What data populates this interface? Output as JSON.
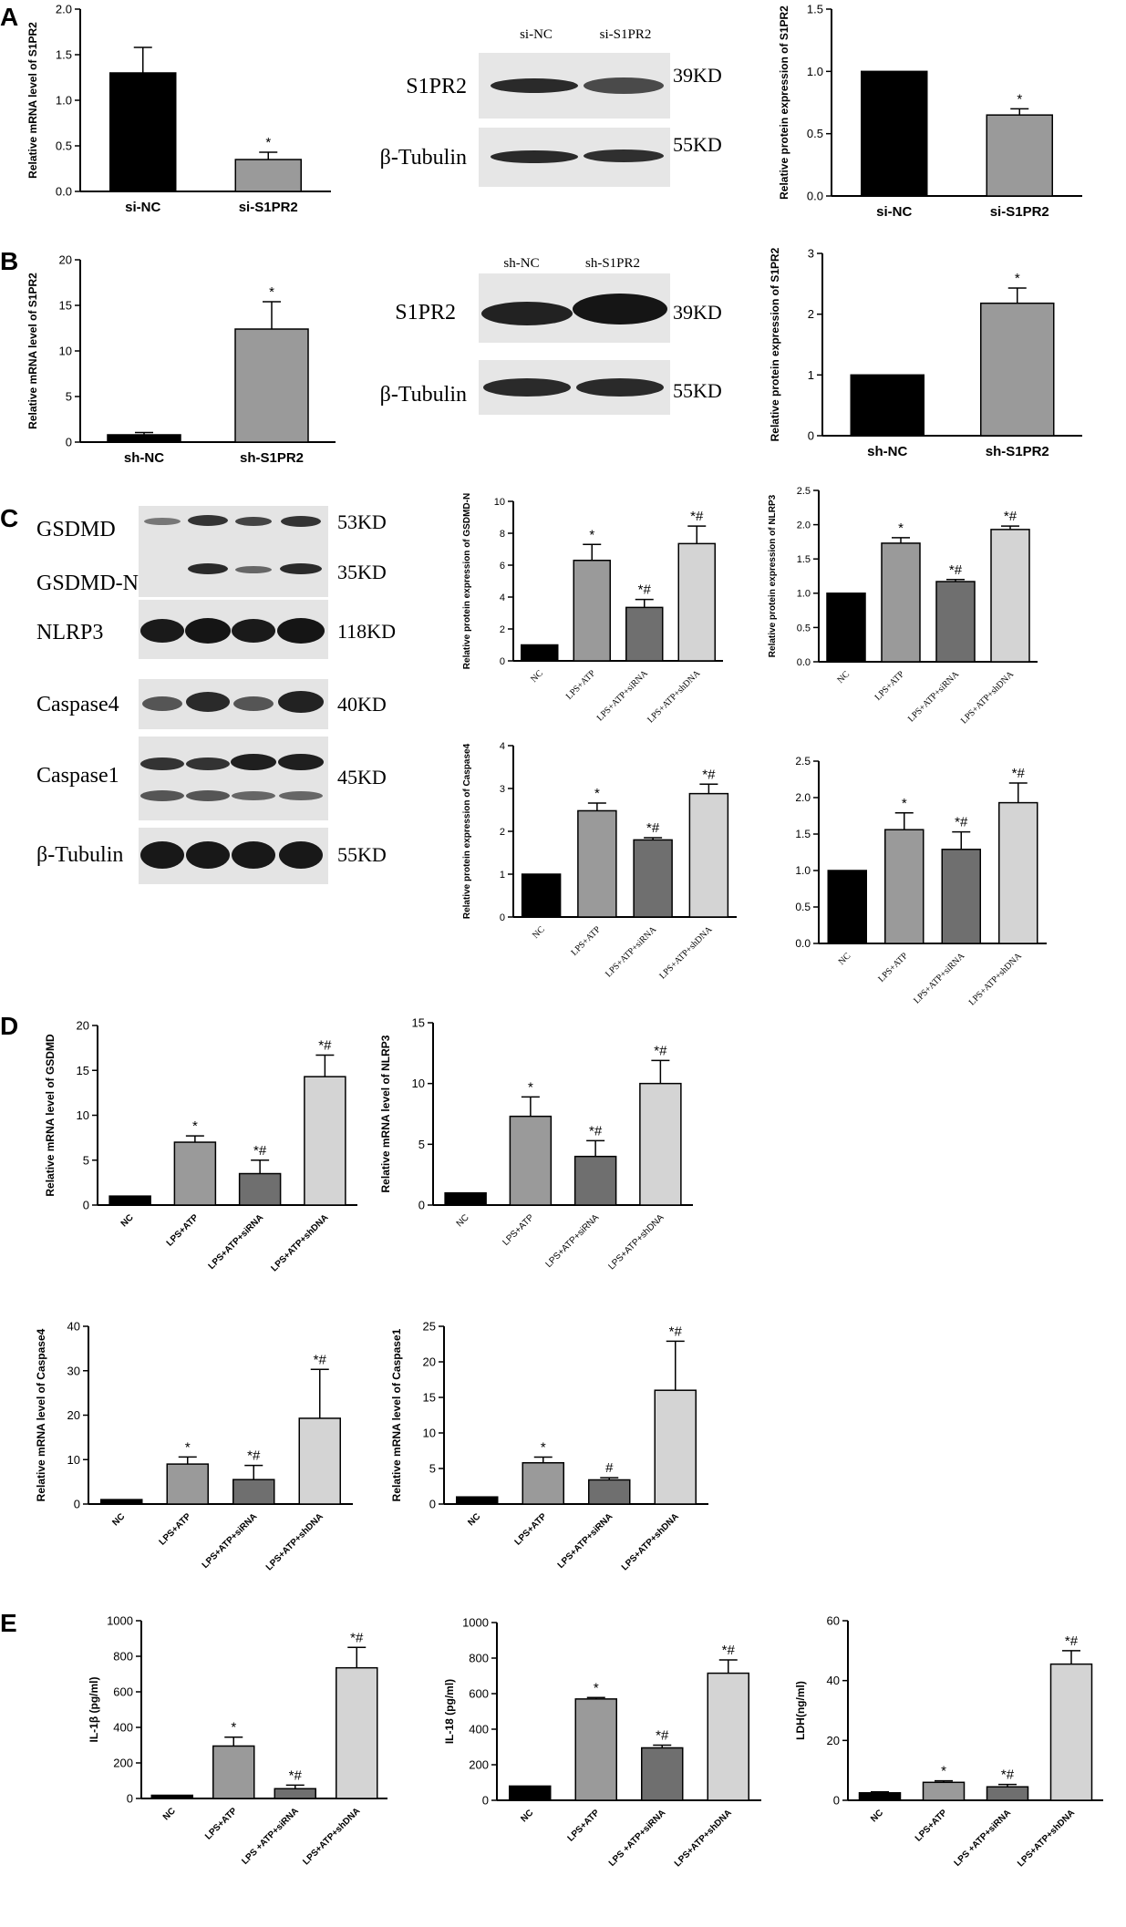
{
  "panels": {
    "A": "A",
    "B": "B",
    "C": "C",
    "D": "D",
    "E": "E"
  },
  "colors": {
    "black": "#000000",
    "gray": "#9a9a9a",
    "dark_gray": "#6f6f6f",
    "light_gray": "#d4d4d4"
  },
  "chart_data": [
    {
      "id": "A1",
      "type": "bar",
      "categories": [
        "si-NC",
        "si-S1PR2"
      ],
      "values": [
        1.3,
        0.35
      ],
      "errors": [
        0.28,
        0.08
      ],
      "marks": [
        "",
        "*"
      ],
      "colors": [
        "#000000",
        "#9a9a9a"
      ],
      "ylabel": "Relative mRNA level of S1PR2",
      "ylim": [
        0,
        2.0
      ],
      "ticks": [
        0,
        0.5,
        1.0,
        1.5,
        2.0
      ],
      "tick_labels": [
        "0.0",
        "0.5",
        "1.0",
        "1.5",
        "2.0"
      ],
      "xlabel_style": "bold"
    },
    {
      "id": "A2",
      "type": "bar",
      "categories": [
        "si-NC",
        "si-S1PR2"
      ],
      "values": [
        1.0,
        0.65
      ],
      "errors": [
        0.0,
        0.05
      ],
      "marks": [
        "",
        "*"
      ],
      "colors": [
        "#000000",
        "#9a9a9a"
      ],
      "ylabel": "Relative protein expression of S1PR2",
      "ylim": [
        0,
        1.5
      ],
      "ticks": [
        0,
        0.5,
        1.0,
        1.5
      ],
      "tick_labels": [
        "0.0",
        "0.5",
        "1.0",
        "1.5"
      ],
      "xlabel_style": "bold"
    },
    {
      "id": "B1",
      "type": "bar",
      "categories": [
        "sh-NC",
        "sh-S1PR2"
      ],
      "values": [
        0.8,
        12.4
      ],
      "errors": [
        0.25,
        3.0
      ],
      "marks": [
        "",
        "*"
      ],
      "colors": [
        "#000000",
        "#9a9a9a"
      ],
      "ylabel": "Relative mRNA level of S1PR2",
      "ylim": [
        0,
        20
      ],
      "ticks": [
        0,
        5,
        10,
        15,
        20
      ],
      "tick_labels": [
        "0",
        "5",
        "10",
        "15",
        "20"
      ],
      "xlabel_style": "bold"
    },
    {
      "id": "B2",
      "type": "bar",
      "categories": [
        "sh-NC",
        "sh-S1PR2"
      ],
      "values": [
        1.0,
        2.18
      ],
      "errors": [
        0.0,
        0.25
      ],
      "marks": [
        "",
        "*"
      ],
      "colors": [
        "#000000",
        "#9a9a9a"
      ],
      "ylabel": "Relative protein expression of S1PR2",
      "ylim": [
        0,
        3
      ],
      "ticks": [
        0,
        1,
        2,
        3
      ],
      "tick_labels": [
        "0",
        "1",
        "2",
        "3"
      ],
      "xlabel_style": "bold"
    },
    {
      "id": "C1",
      "type": "bar",
      "categories": [
        "NC",
        "LPS+ATP",
        "LPS+ATP+siRNA",
        "LPS+ATP+shDNA"
      ],
      "values": [
        1.0,
        6.3,
        3.35,
        7.35
      ],
      "errors": [
        0.0,
        1.0,
        0.5,
        1.1
      ],
      "marks": [
        "",
        "*",
        "*#",
        "*#"
      ],
      "colors": [
        "#000000",
        "#9a9a9a",
        "#6f6f6f",
        "#d4d4d4"
      ],
      "ylabel": "Relative protein expression of GSDMD-N",
      "ylim": [
        0,
        10
      ],
      "ticks": [
        0,
        2,
        4,
        6,
        8,
        10
      ],
      "tick_labels": [
        "0",
        "2",
        "4",
        "6",
        "8",
        "10"
      ],
      "xlabel_style": "serif"
    },
    {
      "id": "C2",
      "type": "bar",
      "categories": [
        "NC",
        "LPS+ATP",
        "LPS+ATP+siRNA",
        "LPS+ATP+shDNA"
      ],
      "values": [
        1.0,
        1.73,
        1.17,
        1.93
      ],
      "errors": [
        0.0,
        0.08,
        0.03,
        0.05
      ],
      "marks": [
        "",
        "*",
        "*#",
        "*#"
      ],
      "colors": [
        "#000000",
        "#9a9a9a",
        "#6f6f6f",
        "#d4d4d4"
      ],
      "ylabel": "Relative protein expression of NLRP3",
      "ylim": [
        0,
        2.5
      ],
      "ticks": [
        0,
        0.5,
        1.0,
        1.5,
        2.0,
        2.5
      ],
      "tick_labels": [
        "0.0",
        "0.5",
        "1.0",
        "1.5",
        "2.0",
        "2.5"
      ],
      "xlabel_style": "serif"
    },
    {
      "id": "C3",
      "type": "bar",
      "categories": [
        "NC",
        "LPS+ATP",
        "LPS+ATP+siRNA",
        "LPS+ATP+shDNA"
      ],
      "values": [
        1.0,
        2.48,
        1.8,
        2.88
      ],
      "errors": [
        0.0,
        0.18,
        0.05,
        0.22
      ],
      "marks": [
        "",
        "*",
        "*#",
        "*#"
      ],
      "colors": [
        "#000000",
        "#9a9a9a",
        "#6f6f6f",
        "#d4d4d4"
      ],
      "ylabel": "Relative protein expression of Caspase4",
      "ylim": [
        0,
        4
      ],
      "ticks": [
        0,
        1,
        2,
        3,
        4
      ],
      "tick_labels": [
        "0",
        "1",
        "2",
        "3",
        "4"
      ],
      "xlabel_style": "serif"
    },
    {
      "id": "C4",
      "type": "bar",
      "categories": [
        "NC",
        "LPS+ATP",
        "LPS+ATP+siRNA",
        "LPS+ATP+shDNA"
      ],
      "values": [
        1.0,
        1.56,
        1.29,
        1.93
      ],
      "errors": [
        0.0,
        0.23,
        0.24,
        0.27
      ],
      "marks": [
        "",
        "*",
        "*#",
        "*#"
      ],
      "colors": [
        "#000000",
        "#9a9a9a",
        "#6f6f6f",
        "#d4d4d4"
      ],
      "ylabel": "",
      "ylim": [
        0,
        2.5
      ],
      "ticks": [
        0,
        0.5,
        1.0,
        1.5,
        2.0,
        2.5
      ],
      "tick_labels": [
        "0.0",
        "0.5",
        "1.0",
        "1.5",
        "2.0",
        "2.5"
      ],
      "xlabel_style": "serif"
    },
    {
      "id": "D1",
      "type": "bar",
      "categories": [
        "NC",
        "LPS+ATP",
        "LPS+ATP+siRNA",
        "LPS+ATP+shDNA"
      ],
      "values": [
        1.0,
        7.0,
        3.5,
        14.3
      ],
      "errors": [
        0.0,
        0.7,
        1.5,
        2.4
      ],
      "marks": [
        "",
        "*",
        "*#",
        "*#"
      ],
      "colors": [
        "#000000",
        "#9a9a9a",
        "#6f6f6f",
        "#d4d4d4"
      ],
      "ylabel": "Relative mRNA level of GSDMD",
      "ylim": [
        0,
        20
      ],
      "ticks": [
        0,
        5,
        10,
        15,
        20
      ],
      "tick_labels": [
        "0",
        "5",
        "10",
        "15",
        "20"
      ],
      "xlabel_style": "bold"
    },
    {
      "id": "D2",
      "type": "bar",
      "categories": [
        "NC",
        "LPS+ATP",
        "LPS+ATP+siRNA",
        "LPS+ATP+shDNA"
      ],
      "values": [
        1.0,
        7.3,
        4.0,
        10.0
      ],
      "errors": [
        0.0,
        1.6,
        1.3,
        1.9
      ],
      "marks": [
        "",
        "*",
        "*#",
        "*#"
      ],
      "colors": [
        "#000000",
        "#9a9a9a",
        "#6f6f6f",
        "#d4d4d4"
      ],
      "ylabel": "Relative mRNA level of NLRP3",
      "ylim": [
        0,
        15
      ],
      "ticks": [
        0,
        5,
        10,
        15
      ],
      "tick_labels": [
        "0",
        "5",
        "10",
        "15"
      ],
      "xlabel_style": "plain"
    },
    {
      "id": "D3",
      "type": "bar",
      "categories": [
        "NC",
        "LPS+ATP",
        "LPS+ATP+siRNA",
        "LPS+ATP+shDNA"
      ],
      "values": [
        1.0,
        9.0,
        5.5,
        19.3
      ],
      "errors": [
        0.0,
        1.6,
        3.2,
        11.0
      ],
      "marks": [
        "",
        "*",
        "*#",
        "*#"
      ],
      "colors": [
        "#000000",
        "#9a9a9a",
        "#6f6f6f",
        "#d4d4d4"
      ],
      "ylabel": "Relative mRNA level of Caspase4",
      "ylim": [
        0,
        40
      ],
      "ticks": [
        0,
        10,
        20,
        30,
        40
      ],
      "tick_labels": [
        "0",
        "10",
        "20",
        "30",
        "40"
      ],
      "xlabel_style": "bold"
    },
    {
      "id": "D4",
      "type": "bar",
      "categories": [
        "NC",
        "LPS+ATP",
        "LPS+ATP+siRNA",
        "LPS+ATP+shDNA"
      ],
      "values": [
        1.0,
        5.8,
        3.4,
        16.0
      ],
      "errors": [
        0.0,
        0.8,
        0.3,
        6.9
      ],
      "marks": [
        "",
        "*",
        "#",
        "*#"
      ],
      "colors": [
        "#000000",
        "#9a9a9a",
        "#6f6f6f",
        "#d4d4d4"
      ],
      "ylabel": "Relative mRNA level of Caspase1",
      "ylim": [
        0,
        25
      ],
      "ticks": [
        0,
        5,
        10,
        15,
        20,
        25
      ],
      "tick_labels": [
        "0",
        "5",
        "10",
        "15",
        "20",
        "25"
      ],
      "xlabel_style": "bold"
    },
    {
      "id": "E1",
      "type": "bar",
      "categories": [
        "NC",
        "LPS+ATP",
        "LPS +ATP+siRNA",
        "LPS+ATP+shDNA"
      ],
      "values": [
        18,
        295,
        55,
        735
      ],
      "errors": [
        0,
        50,
        20,
        115
      ],
      "marks": [
        "",
        "*",
        "*#",
        "*#"
      ],
      "colors": [
        "#000000",
        "#9a9a9a",
        "#6f6f6f",
        "#d4d4d4"
      ],
      "ylabel": "IL-1β (pg/ml)",
      "ylim": [
        0,
        1000
      ],
      "ticks": [
        0,
        200,
        400,
        600,
        800,
        1000
      ],
      "tick_labels": [
        "0",
        "200",
        "400",
        "600",
        "800",
        "1000"
      ],
      "xlabel_style": "bold"
    },
    {
      "id": "E2",
      "type": "bar",
      "categories": [
        "NC",
        "LPS+ATP",
        "LPS +ATP+siRNA",
        "LPS+ATP+shDNA"
      ],
      "values": [
        80,
        570,
        295,
        715
      ],
      "errors": [
        0,
        8,
        15,
        75
      ],
      "marks": [
        "",
        "*",
        "*#",
        "*#"
      ],
      "colors": [
        "#000000",
        "#9a9a9a",
        "#6f6f6f",
        "#d4d4d4"
      ],
      "ylabel": "IL-18 (pg/ml)",
      "ylim": [
        0,
        1000
      ],
      "ticks": [
        0,
        200,
        400,
        600,
        800,
        1000
      ],
      "tick_labels": [
        "0",
        "200",
        "400",
        "600",
        "800",
        "1000"
      ],
      "xlabel_style": "bold"
    },
    {
      "id": "E3",
      "type": "bar",
      "categories": [
        "NC",
        "LPS+ATP",
        "LPS +ATP+siRNA",
        "LPS+ATP+shDNA"
      ],
      "values": [
        2.5,
        6.0,
        4.5,
        45.5
      ],
      "errors": [
        0.3,
        0.5,
        0.8,
        4.5
      ],
      "marks": [
        "",
        "*",
        "*#",
        "*#"
      ],
      "colors": [
        "#000000",
        "#9a9a9a",
        "#6f6f6f",
        "#d4d4d4"
      ],
      "ylabel": "LDH(ng/ml)",
      "ylim": [
        0,
        60
      ],
      "ticks": [
        0,
        20,
        40,
        60
      ],
      "tick_labels": [
        "0",
        "20",
        "40",
        "60"
      ],
      "xlabel_style": "bold"
    }
  ],
  "blots": [
    {
      "id": "blotA",
      "lanes": [
        "si-NC",
        "si-S1PR2"
      ],
      "rows": [
        {
          "label": "S1PR2",
          "kd": "39KD"
        },
        {
          "label": "β-Tubulin",
          "kd": "55KD"
        }
      ]
    },
    {
      "id": "blotB",
      "lanes": [
        "sh-NC",
        "sh-S1PR2"
      ],
      "rows": [
        {
          "label": "S1PR2",
          "kd": "39KD"
        },
        {
          "label": "β-Tubulin",
          "kd": "55KD"
        }
      ]
    },
    {
      "id": "blotC",
      "lanes": [],
      "rows": [
        {
          "label": "GSDMD",
          "kd": "53KD"
        },
        {
          "label": "GSDMD-N",
          "kd": "35KD"
        },
        {
          "label": "NLRP3",
          "kd": "118KD"
        },
        {
          "label": "Caspase4",
          "kd": "40KD"
        },
        {
          "label": "Caspase1",
          "kd": "45KD"
        },
        {
          "label": "β-Tubulin",
          "kd": "55KD"
        }
      ]
    }
  ]
}
